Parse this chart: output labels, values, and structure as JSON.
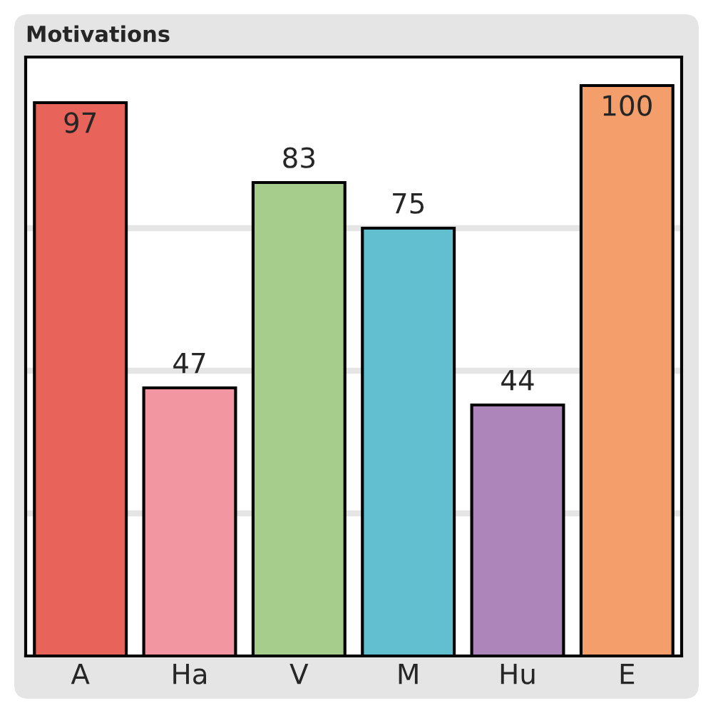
{
  "chart_data": {
    "type": "bar",
    "title": "Motivations",
    "categories": [
      "A",
      "Ha",
      "V",
      "M",
      "Hu",
      "E"
    ],
    "values": [
      97,
      47,
      83,
      75,
      44,
      100
    ],
    "colors": [
      "#e8635a",
      "#f297a1",
      "#a6cd8c",
      "#62bfcf",
      "#ad85ba",
      "#f49e6c"
    ],
    "ylim": [
      0,
      105
    ],
    "yticks": [
      {
        "value": 25,
        "label": null
      },
      {
        "value": 50,
        "label": null
      },
      {
        "value": 75,
        "label": null
      }
    ],
    "grid": "y",
    "tick_labels": "x",
    "data_labels": true
  }
}
